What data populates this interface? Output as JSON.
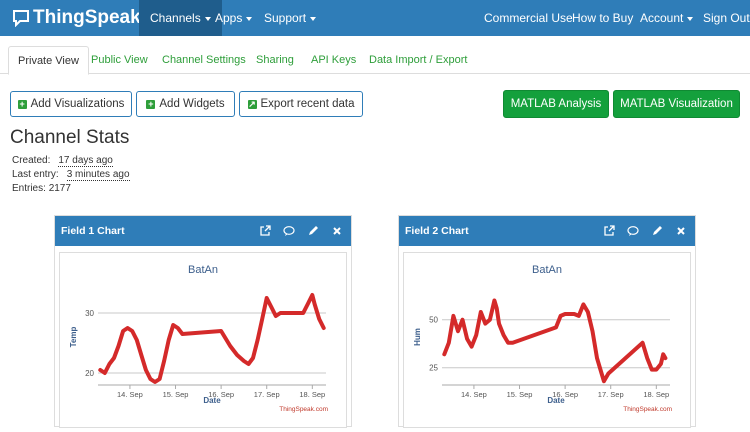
{
  "nav": {
    "brand": "ThingSpeak",
    "brand_tm": "™",
    "items": [
      {
        "label": "Channels",
        "caret": true,
        "active": true
      },
      {
        "label": "Apps",
        "caret": true
      },
      {
        "label": "Support",
        "caret": true
      },
      {
        "label": "Commercial Use"
      },
      {
        "label": "How to Buy"
      },
      {
        "label": "Account",
        "caret": true
      },
      {
        "label": "Sign Out"
      }
    ]
  },
  "tabs": [
    "Private View",
    "Public View",
    "Channel Settings",
    "Sharing",
    "API Keys",
    "Data Import / Export"
  ],
  "buttons": {
    "add_visualizations": "Add Visualizations",
    "add_widgets": "Add Widgets",
    "export_recent": "Export recent data",
    "matlab_analysis": "MATLAB Analysis",
    "matlab_visualization": "MATLAB Visualization"
  },
  "stats": {
    "title": "Channel Stats",
    "created_label": "Created:",
    "created_value": "17 days ago",
    "last_entry_label": "Last entry:",
    "last_entry_value": "3 minutes ago",
    "entries_label": "Entries:",
    "entries_value": "2177"
  },
  "colors": {
    "nav": "#2f7db8",
    "tab_link": "#2e9e3a",
    "matlab_button": "#14a03c",
    "series": "#d42a2a"
  },
  "chart_data": [
    {
      "type": "line",
      "panel_title": "Field 1 Chart",
      "title": "BatAn",
      "xlabel": "Date",
      "ylabel": "Temp",
      "credit": "ThingSpeak.com",
      "x_ticks": [
        "14. Sep",
        "15. Sep",
        "16. Sep",
        "17. Sep",
        "18. Sep"
      ],
      "y_ticks": [
        20,
        30
      ],
      "ylim": [
        18,
        34
      ],
      "xlim": [
        13.3,
        18.3
      ],
      "series": [
        {
          "color": "#d42a2a",
          "points": [
            [
              13.35,
              20.5
            ],
            [
              13.45,
              20.0
            ],
            [
              13.55,
              21.5
            ],
            [
              13.65,
              22.5
            ],
            [
              13.75,
              24.5
            ],
            [
              13.85,
              27.0
            ],
            [
              13.95,
              27.5
            ],
            [
              14.05,
              27.0
            ],
            [
              14.15,
              25.5
            ],
            [
              14.25,
              23.0
            ],
            [
              14.35,
              20.5
            ],
            [
              14.45,
              19.0
            ],
            [
              14.55,
              18.5
            ],
            [
              14.65,
              19.0
            ],
            [
              14.75,
              22.0
            ],
            [
              14.85,
              25.5
            ],
            [
              14.95,
              28.0
            ],
            [
              15.05,
              27.5
            ],
            [
              15.15,
              26.5
            ],
            [
              16.0,
              27.0
            ],
            [
              16.2,
              24.5
            ],
            [
              16.35,
              23.0
            ],
            [
              16.5,
              22.0
            ],
            [
              16.6,
              21.5
            ],
            [
              16.7,
              22.5
            ],
            [
              16.8,
              25.5
            ],
            [
              16.9,
              29.0
            ],
            [
              17.0,
              32.5
            ],
            [
              17.1,
              31.0
            ],
            [
              17.2,
              29.5
            ],
            [
              17.3,
              30.0
            ],
            [
              17.5,
              30.0
            ],
            [
              17.8,
              30.0
            ],
            [
              17.9,
              31.5
            ],
            [
              18.0,
              33.0
            ],
            [
              18.05,
              31.5
            ],
            [
              18.15,
              29.0
            ],
            [
              18.25,
              27.5
            ]
          ]
        }
      ]
    },
    {
      "type": "line",
      "panel_title": "Field 2 Chart",
      "title": "BatAn",
      "xlabel": "Date",
      "ylabel": "Hum",
      "credit": "ThingSpeak.com",
      "x_ticks": [
        "14. Sep",
        "15. Sep",
        "16. Sep",
        "17. Sep",
        "18. Sep"
      ],
      "y_ticks": [
        25,
        50
      ],
      "ylim": [
        16,
        66
      ],
      "xlim": [
        13.3,
        18.3
      ],
      "series": [
        {
          "color": "#d42a2a",
          "points": [
            [
              13.35,
              32
            ],
            [
              13.45,
              38
            ],
            [
              13.55,
              52
            ],
            [
              13.65,
              44
            ],
            [
              13.75,
              50
            ],
            [
              13.85,
              40
            ],
            [
              13.95,
              36
            ],
            [
              14.05,
              42
            ],
            [
              14.15,
              54
            ],
            [
              14.25,
              48
            ],
            [
              14.35,
              50
            ],
            [
              14.45,
              60
            ],
            [
              14.5,
              56
            ],
            [
              14.55,
              48
            ],
            [
              14.65,
              42
            ],
            [
              14.75,
              38
            ],
            [
              14.85,
              38
            ],
            [
              15.8,
              46
            ],
            [
              15.9,
              52
            ],
            [
              16.0,
              53
            ],
            [
              16.2,
              53
            ],
            [
              16.3,
              52
            ],
            [
              16.4,
              58
            ],
            [
              16.5,
              54
            ],
            [
              16.6,
              44
            ],
            [
              16.7,
              30
            ],
            [
              16.8,
              22
            ],
            [
              16.85,
              18
            ],
            [
              16.95,
              22
            ],
            [
              17.7,
              38
            ],
            [
              17.8,
              30
            ],
            [
              17.9,
              24
            ],
            [
              18.0,
              24
            ],
            [
              18.1,
              27
            ],
            [
              18.15,
              32
            ],
            [
              18.2,
              30
            ]
          ]
        }
      ]
    }
  ]
}
